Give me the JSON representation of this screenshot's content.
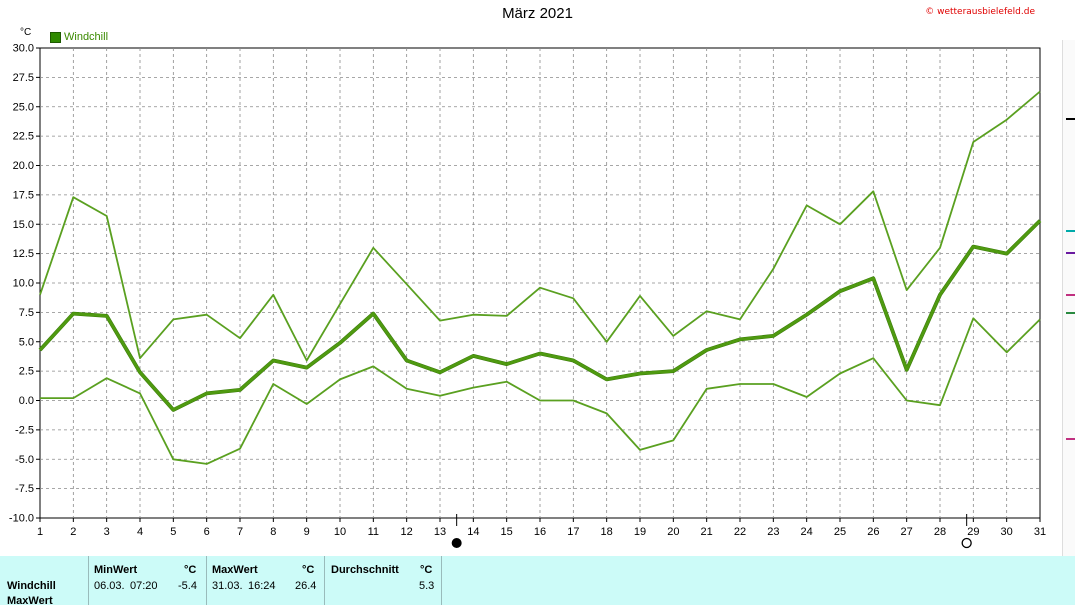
{
  "header": {
    "title": "März 2021",
    "copyright": "© wetterausbielefeld.de",
    "unit": "°C"
  },
  "legend": {
    "label": "Windchill",
    "color": "#2f8a00"
  },
  "chart_data": {
    "type": "line",
    "title": "März 2021",
    "ylabel": "°C",
    "xlabel": "",
    "x": [
      1,
      2,
      3,
      4,
      5,
      6,
      7,
      8,
      9,
      10,
      11,
      12,
      13,
      14,
      15,
      16,
      17,
      18,
      19,
      20,
      21,
      22,
      23,
      24,
      25,
      26,
      27,
      28,
      29,
      30,
      31
    ],
    "ylim": [
      -10,
      30
    ],
    "yticks": [
      "30.0",
      "27.5",
      "25.0",
      "22.5",
      "20.0",
      "17.5",
      "15.0",
      "12.5",
      "10.0",
      "7.5",
      "5.0",
      "2.5",
      "0.0",
      "-2.5",
      "-5.0",
      "-7.5",
      "-10.0"
    ],
    "grid": true,
    "series": [
      {
        "name": "Windchill",
        "color": "#4f9a10",
        "width": 3,
        "values": [
          4.3,
          7.4,
          7.2,
          2.4,
          -0.8,
          0.6,
          0.9,
          3.4,
          2.8,
          4.9,
          7.4,
          3.4,
          2.4,
          3.8,
          3.1,
          4.0,
          3.4,
          1.8,
          2.3,
          2.5,
          4.3,
          5.2,
          5.5,
          7.3,
          9.3,
          10.4,
          2.6,
          9.0,
          13.1,
          12.5,
          15.3
        ]
      },
      {
        "color": "#5aa020",
        "width": 1.8,
        "values": [
          9.0,
          17.3,
          15.7,
          3.6,
          6.9,
          7.3,
          5.3,
          9.0,
          3.4,
          8.2,
          13.0,
          9.9,
          6.8,
          7.3,
          7.2,
          9.6,
          8.7,
          5.0,
          8.9,
          5.5,
          7.6,
          6.9,
          11.2,
          16.6,
          15.0,
          17.8,
          9.4,
          13.0,
          22.0,
          23.9,
          26.3
        ]
      },
      {
        "color": "#5aa020",
        "width": 1.8,
        "values": [
          0.2,
          0.2,
          1.9,
          0.6,
          -5.0,
          -5.4,
          -4.1,
          1.4,
          -0.3,
          1.8,
          2.9,
          1.0,
          0.4,
          1.1,
          1.6,
          0.0,
          0.0,
          -1.1,
          -4.2,
          -3.4,
          1.0,
          1.4,
          1.4,
          0.3,
          2.3,
          3.6,
          0.0,
          -0.4,
          7.0,
          4.1,
          6.9
        ]
      }
    ],
    "markers": [
      {
        "day": 13.5,
        "symbol": "full-moon"
      },
      {
        "day": 28.8,
        "symbol": "new-moon"
      }
    ]
  },
  "stats": {
    "headers": {
      "min": "MinWert",
      "unit1": "°C",
      "max": "MaxWert",
      "unit2": "°C",
      "avg": "Durchschnitt",
      "unit3": "°C"
    },
    "rows": [
      {
        "label": "Windchill",
        "min_date": "06.03.",
        "min_time": "07:20",
        "min_val": "-5.4",
        "max_date": "31.03.",
        "max_time": "16:24",
        "max_val": "26.4",
        "avg": "5.3"
      },
      {
        "label": "MaxWert"
      }
    ]
  }
}
